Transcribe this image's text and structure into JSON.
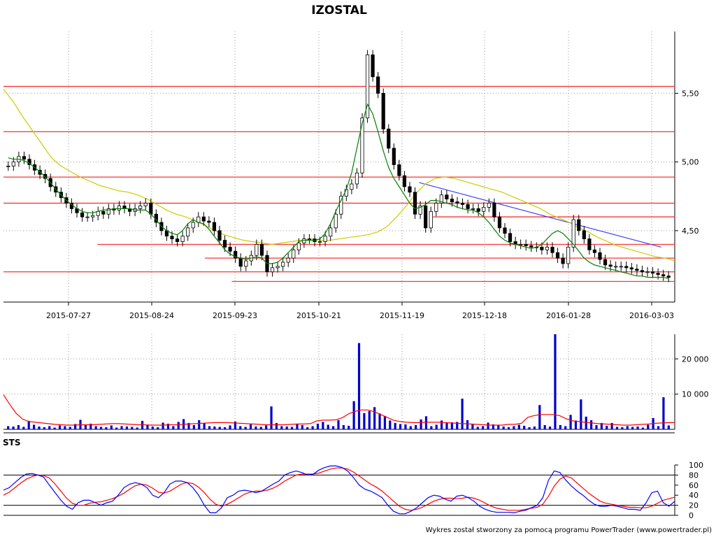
{
  "chart_data": [
    {
      "type": "candlestick",
      "title": "IZOSTAL",
      "x_ticks": [
        "2015-07-27",
        "2015-08-24",
        "2015-09-23",
        "2015-10-21",
        "2015-11-19",
        "2015-12-18",
        "2016-01-28",
        "2016-03-03"
      ],
      "y_ticks": [
        "4,50",
        "5,00",
        "5,50"
      ],
      "ylim": [
        3.98,
        5.95
      ],
      "grid": "dotted",
      "support_resistance_levels": [
        5.55,
        5.22,
        4.89,
        4.7,
        4.6,
        4.4,
        4.3,
        4.2,
        4.13
      ],
      "trendline": {
        "from": {
          "date": "2015-11-25",
          "value": 4.85
        },
        "to": {
          "date": "2016-03-07",
          "value": 4.38
        }
      },
      "series": [
        {
          "name": "",
          "kind": "close",
          "color": "#000000",
          "values": [
            4.97,
            5.0,
            5.04,
            5.02,
            4.98,
            4.94,
            4.91,
            4.88,
            4.82,
            4.78,
            4.74,
            4.7,
            4.66,
            4.63,
            4.6,
            4.6,
            4.61,
            4.64,
            4.62,
            4.66,
            4.65,
            4.68,
            4.66,
            4.64,
            4.66,
            4.68,
            4.7,
            4.62,
            4.56,
            4.5,
            4.46,
            4.44,
            4.42,
            4.46,
            4.52,
            4.56,
            4.6,
            4.57,
            4.56,
            4.5,
            4.43,
            4.38,
            4.35,
            4.3,
            4.24,
            4.28,
            4.32,
            4.4,
            4.32,
            4.2,
            4.23,
            4.24,
            4.27,
            4.3,
            4.36,
            4.41,
            4.44,
            4.44,
            4.42,
            4.42,
            4.46,
            4.52,
            4.62,
            4.75,
            4.8,
            4.84,
            4.92,
            5.32,
            5.78,
            5.62,
            5.5,
            5.24,
            5.1,
            4.98,
            4.9,
            4.82,
            4.78,
            4.62,
            4.68,
            4.52,
            4.64,
            4.7,
            4.76,
            4.73,
            4.71,
            4.7,
            4.69,
            4.66,
            4.66,
            4.64,
            4.67,
            4.7,
            4.6,
            4.52,
            4.48,
            4.42,
            4.4,
            4.4,
            4.39,
            4.38,
            4.38,
            4.36,
            4.38,
            4.34,
            4.3,
            4.26,
            4.38,
            4.58,
            4.5,
            4.44,
            4.36,
            4.34,
            4.29,
            4.25,
            4.24,
            4.24,
            4.24,
            4.23,
            4.22,
            4.21,
            4.2,
            4.2,
            4.19,
            4.18,
            4.17,
            4.16
          ]
        },
        {
          "name": "",
          "kind": "moving-average-short",
          "color": "#008000",
          "values": [
            5.03,
            5.02,
            5.02,
            5.01,
            4.99,
            4.96,
            4.93,
            4.89,
            4.85,
            4.8,
            4.76,
            4.72,
            4.69,
            4.66,
            4.64,
            4.63,
            4.63,
            4.64,
            4.65,
            4.65,
            4.66,
            4.66,
            4.66,
            4.66,
            4.65,
            4.65,
            4.65,
            4.62,
            4.58,
            4.53,
            4.5,
            4.48,
            4.47,
            4.5,
            4.55,
            4.58,
            4.56,
            4.55,
            4.51,
            4.46,
            4.41,
            4.36,
            4.33,
            4.31,
            4.3,
            4.29,
            4.3,
            4.31,
            4.3,
            4.26,
            4.26,
            4.27,
            4.3,
            4.34,
            4.38,
            4.42,
            4.43,
            4.43,
            4.43,
            4.44,
            4.48,
            4.55,
            4.64,
            4.72,
            4.8,
            4.92,
            5.1,
            5.28,
            5.42,
            5.35,
            5.22,
            5.08,
            4.96,
            4.88,
            4.82,
            4.76,
            4.7,
            4.66,
            4.67,
            4.69,
            4.72,
            4.72,
            4.71,
            4.7,
            4.69,
            4.67,
            4.66,
            4.65,
            4.65,
            4.63,
            4.6,
            4.56,
            4.51,
            4.46,
            4.43,
            4.41,
            4.4,
            4.39,
            4.38,
            4.37,
            4.38,
            4.4,
            4.44,
            4.48,
            4.5,
            4.48,
            4.44,
            4.4,
            4.35,
            4.3,
            4.27,
            4.25,
            4.24,
            4.23,
            4.22,
            4.21,
            4.2,
            4.19,
            4.18,
            4.17,
            4.17,
            4.16,
            4.16,
            4.16,
            4.16,
            4.15
          ]
        },
        {
          "name": "",
          "kind": "moving-average-long",
          "color": "#cccc00",
          "values": [
            5.53,
            5.44,
            5.33,
            5.23,
            5.13,
            5.03,
            4.97,
            4.93,
            4.89,
            4.86,
            4.83,
            4.81,
            4.79,
            4.78,
            4.76,
            4.73,
            4.69,
            4.65,
            4.62,
            4.6,
            4.57,
            4.54,
            4.5,
            4.47,
            4.45,
            4.43,
            4.42,
            4.41,
            4.4,
            4.41,
            4.42,
            4.43,
            4.44,
            4.43,
            4.43,
            4.44,
            4.45,
            4.46,
            4.47,
            4.49,
            4.53,
            4.6,
            4.68,
            4.77,
            4.84,
            4.88,
            4.89,
            4.88,
            4.86,
            4.84,
            4.82,
            4.8,
            4.78,
            4.75,
            4.72,
            4.69,
            4.66,
            4.62,
            4.59,
            4.56,
            4.52,
            4.49,
            4.45,
            4.42,
            4.39,
            4.37,
            4.35,
            4.33,
            4.31,
            4.3,
            4.28
          ]
        }
      ]
    },
    {
      "type": "bar",
      "y_ticks": [
        "10 000",
        "20 000"
      ],
      "ylim": [
        0,
        27000
      ],
      "series": [
        {
          "name": "",
          "kind": "volume",
          "color": "#0000cc",
          "values": [
            900,
            800,
            1200,
            700,
            2400,
            1300,
            800,
            600,
            900,
            500,
            1100,
            900,
            700,
            1500,
            2700,
            1200,
            1600,
            900,
            700,
            600,
            1100,
            500,
            900,
            800,
            700,
            500,
            2400,
            1200,
            800,
            600,
            1900,
            1600,
            900,
            2100,
            2900,
            1800,
            1200,
            2600,
            1700,
            900,
            800,
            700,
            600,
            1100,
            2200,
            900,
            700,
            1400,
            800,
            700,
            1100,
            6500,
            1800,
            900,
            800,
            700,
            1500,
            1200,
            600,
            900,
            1600,
            2100,
            1300,
            900,
            2600,
            1200,
            1000,
            8000,
            24500,
            4600,
            5200,
            6300,
            4500,
            3800,
            2500,
            1800,
            1500,
            1400,
            900,
            1200,
            2800,
            3700,
            900,
            1300,
            2500,
            1800,
            2000,
            2100,
            8700,
            2600,
            1500,
            700,
            900,
            1900,
            1400,
            1100,
            800,
            600,
            900,
            1300,
            1000,
            600,
            800,
            6900,
            1200,
            800,
            27000,
            1200,
            900,
            4100,
            2500,
            8500,
            3600,
            2600,
            1200,
            1800,
            1000,
            1800,
            700,
            600,
            900,
            700,
            800,
            500,
            1300,
            3200,
            900,
            9100,
            1100
          ]
        },
        {
          "name": "",
          "kind": "volume-average",
          "color": "#ff0000",
          "values": [
            9800,
            7000,
            4500,
            2900,
            2200,
            2000,
            1800,
            1600,
            1400,
            1300,
            1200,
            1200,
            1300,
            1300,
            1300,
            1400,
            1500,
            1600,
            1600,
            1500,
            1400,
            1300,
            1300,
            1200,
            1200,
            1200,
            1300,
            1300,
            1400,
            1500,
            1600,
            1700,
            1800,
            1900,
            1900,
            1900,
            1800,
            1700,
            1600,
            1500,
            1400,
            1300,
            1300,
            1300,
            1300,
            1400,
            1500,
            1500,
            1600,
            2400,
            2600,
            2600,
            2700,
            3300,
            4400,
            5100,
            5500,
            5500,
            5000,
            4200,
            3400,
            2600,
            2200,
            2000,
            1900,
            1900,
            2000,
            2000,
            2000,
            1900,
            1800,
            1700,
            1600,
            1500,
            1400,
            1300,
            1200,
            1200,
            1200,
            1400,
            1400,
            1700,
            3400,
            3900,
            4200,
            4200,
            4200,
            3900,
            3000,
            2400,
            2200,
            2000,
            1800,
            1600,
            1500,
            1400,
            1300,
            1200,
            1200,
            1300,
            1400,
            1500,
            1700,
            1800,
            1900,
            1900
          ]
        }
      ]
    },
    {
      "type": "line",
      "title": "STS",
      "y_ticks": [
        "0",
        "20",
        "40",
        "60",
        "80",
        "100"
      ],
      "ylim": [
        0,
        100
      ],
      "reference_lines": [
        20,
        80
      ],
      "series": [
        {
          "name": "",
          "kind": "oscillator-fast",
          "color": "#0000ff",
          "values": [
            50,
            55,
            65,
            75,
            82,
            83,
            80,
            76,
            60,
            45,
            30,
            18,
            12,
            25,
            30,
            30,
            25,
            20,
            25,
            28,
            40,
            55,
            62,
            65,
            62,
            55,
            40,
            35,
            45,
            62,
            68,
            68,
            65,
            55,
            40,
            20,
            5,
            5,
            15,
            35,
            40,
            48,
            50,
            48,
            45,
            48,
            55,
            62,
            68,
            80,
            85,
            88,
            85,
            80,
            82,
            90,
            95,
            98,
            98,
            95,
            88,
            75,
            60,
            52,
            48,
            42,
            35,
            20,
            8,
            3,
            3,
            8,
            15,
            25,
            35,
            40,
            38,
            32,
            28,
            38,
            40,
            35,
            28,
            18,
            12,
            8,
            6,
            6,
            6,
            5,
            8,
            10,
            15,
            20,
            35,
            70,
            88,
            85,
            70,
            58,
            48,
            40,
            30,
            22,
            18,
            18,
            20,
            18,
            15,
            12,
            12,
            10,
            25,
            45,
            48,
            25,
            18,
            28
          ]
        },
        {
          "name": "",
          "kind": "oscillator-signal",
          "color": "#ff0000",
          "values": [
            40,
            46,
            55,
            64,
            72,
            77,
            80,
            79,
            74,
            62,
            48,
            34,
            24,
            20,
            20,
            24,
            26,
            27,
            30,
            33,
            38,
            44,
            52,
            59,
            62,
            60,
            54,
            46,
            44,
            48,
            55,
            62,
            65,
            63,
            56,
            45,
            32,
            22,
            18,
            22,
            28,
            35,
            42,
            46,
            48,
            48,
            50,
            54,
            60,
            68,
            74,
            80,
            82,
            82,
            82,
            84,
            88,
            92,
            94,
            94,
            92,
            86,
            78,
            70,
            62,
            56,
            48,
            38,
            28,
            18,
            12,
            10,
            12,
            16,
            22,
            28,
            32,
            34,
            34,
            33,
            34,
            36,
            34,
            30,
            24,
            18,
            14,
            12,
            10,
            10,
            10,
            12,
            14,
            16,
            22,
            38,
            58,
            72,
            78,
            74,
            64,
            54,
            44,
            36,
            28,
            24,
            22,
            20,
            18,
            16,
            16,
            15,
            15,
            18,
            24,
            30,
            33,
            36
          ]
        }
      ]
    }
  ],
  "footer": "Wykres został stworzony za pomocą programu PowerTrader (www.powertrader.pl)"
}
